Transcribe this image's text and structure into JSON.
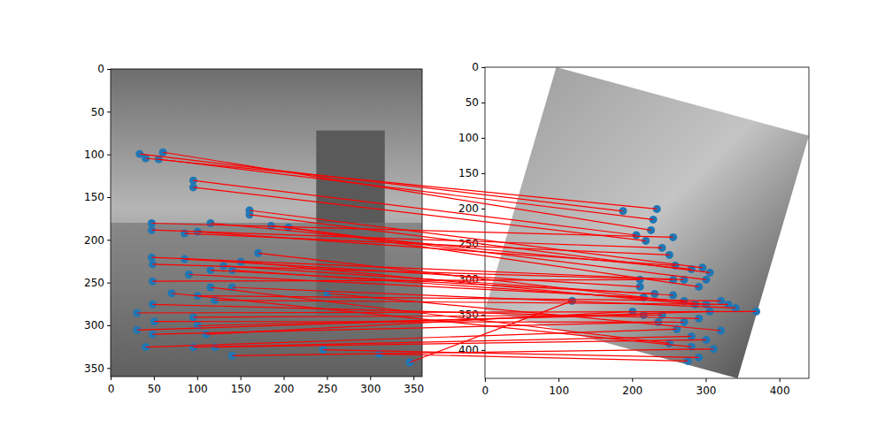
{
  "chart_data": [
    {
      "type": "image",
      "xlim": [
        -0.5,
        359.5
      ],
      "ylim": [
        359.5,
        -0.5
      ],
      "xticks": [
        0,
        50,
        100,
        150,
        200,
        250,
        300,
        350
      ],
      "yticks": [
        0,
        50,
        100,
        150,
        200,
        250,
        300,
        350
      ],
      "series": [
        {
          "type": "scatter",
          "color": "#1f77b4",
          "marker": "circle",
          "x": [
            33,
            40,
            55,
            60,
            95,
            95,
            47,
            47,
            85,
            100,
            115,
            160,
            160,
            185,
            205,
            47,
            48,
            48,
            85,
            90,
            115,
            130,
            140,
            150,
            170,
            100,
            120,
            140,
            30,
            30,
            48,
            50,
            48,
            95,
            100,
            110,
            40,
            95,
            120,
            140,
            245,
            310,
            345,
            250,
            115,
            70
          ],
          "values": [
            99,
            104,
            105,
            97,
            130,
            138,
            180,
            188,
            192,
            190,
            180,
            165,
            170,
            183,
            185,
            220,
            228,
            248,
            222,
            240,
            235,
            230,
            235,
            225,
            215,
            265,
            270,
            255,
            285,
            305,
            275,
            295,
            310,
            290,
            300,
            310,
            325,
            325,
            325,
            335,
            328,
            333,
            343,
            262,
            255,
            262
          ]
        }
      ]
    },
    {
      "type": "image",
      "xlim": [
        -0.5,
        439.5
      ],
      "ylim": [
        439.5,
        -0.5
      ],
      "xticks": [
        0,
        100,
        200,
        300,
        400
      ],
      "yticks": [
        0,
        50,
        100,
        150,
        200,
        250,
        300,
        350,
        400
      ],
      "series": [
        {
          "type": "scatter",
          "color": "#1f77b4",
          "marker": "circle",
          "x": [
            187,
            233,
            228,
            225,
            205,
            218,
            255,
            240,
            250,
            258,
            280,
            295,
            305,
            300,
            290,
            270,
            255,
            210,
            210,
            215,
            230,
            255,
            270,
            285,
            300,
            320,
            330,
            340,
            368,
            305,
            290,
            270,
            235,
            240,
            215,
            200,
            260,
            280,
            300,
            310,
            290,
            275,
            118,
            320,
            250,
            280
          ],
          "values": [
            203,
            200,
            215,
            230,
            237,
            245,
            240,
            255,
            265,
            280,
            285,
            283,
            290,
            300,
            310,
            300,
            300,
            300,
            310,
            325,
            320,
            322,
            330,
            335,
            335,
            330,
            335,
            340,
            345,
            345,
            355,
            360,
            360,
            350,
            350,
            345,
            370,
            380,
            385,
            398,
            410,
            415,
            330,
            372,
            390,
            395
          ]
        }
      ]
    }
  ]
}
